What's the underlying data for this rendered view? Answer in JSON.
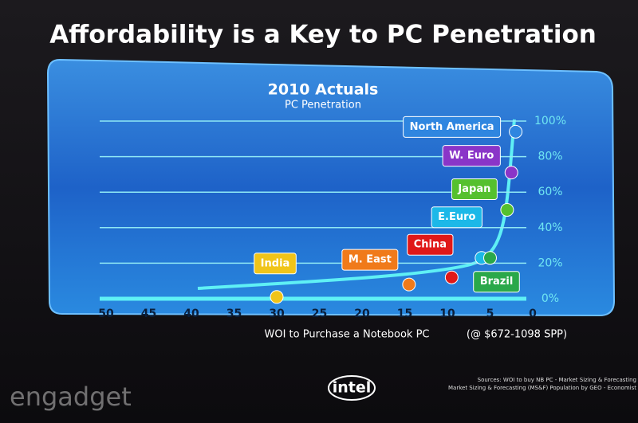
{
  "title": "Affordability is a Key to PC Penetration",
  "chart_data": {
    "type": "scatter",
    "title": "2010 Actuals",
    "subtitle": "PC Penetration",
    "x_label": "WOI to Purchase a Notebook PC",
    "x_note": "(@ $672-1098 SPP)",
    "categories": [
      "North America",
      "W. Euro",
      "Japan",
      "E.Euro",
      "Brazil",
      "China",
      "M. East",
      "India"
    ],
    "x": [
      2,
      2.5,
      3,
      6,
      5,
      9.5,
      14.5,
      30
    ],
    "values": [
      94,
      71,
      50,
      23,
      23,
      12,
      8,
      1
    ],
    "colors": [
      "#2f86e0",
      "#8a35c8",
      "#55c02e",
      "#1cb8e8",
      "#2aa84a",
      "#e01818",
      "#f07a1a",
      "#f0c419"
    ],
    "xlim": [
      50,
      0
    ],
    "xticks": [
      50,
      45,
      40,
      35,
      30,
      25,
      20,
      15,
      10,
      5,
      0
    ],
    "ylim": [
      0,
      100
    ],
    "yticks": [
      {
        "value": 0,
        "label": "0%"
      },
      {
        "value": 20,
        "label": "20%"
      },
      {
        "value": 40,
        "label": "40%"
      },
      {
        "value": 60,
        "label": "60%"
      },
      {
        "value": 80,
        "label": "80%"
      },
      {
        "value": 100,
        "label": "100%"
      }
    ],
    "grid": true
  },
  "sources": [
    "Sources: WOI to buy NB PC - Market Sizing & Forecasting",
    "Market Sizing & Forecasting (MS&F) Population by GEO - Economist"
  ],
  "logo": "intel",
  "watermark": "engadget"
}
